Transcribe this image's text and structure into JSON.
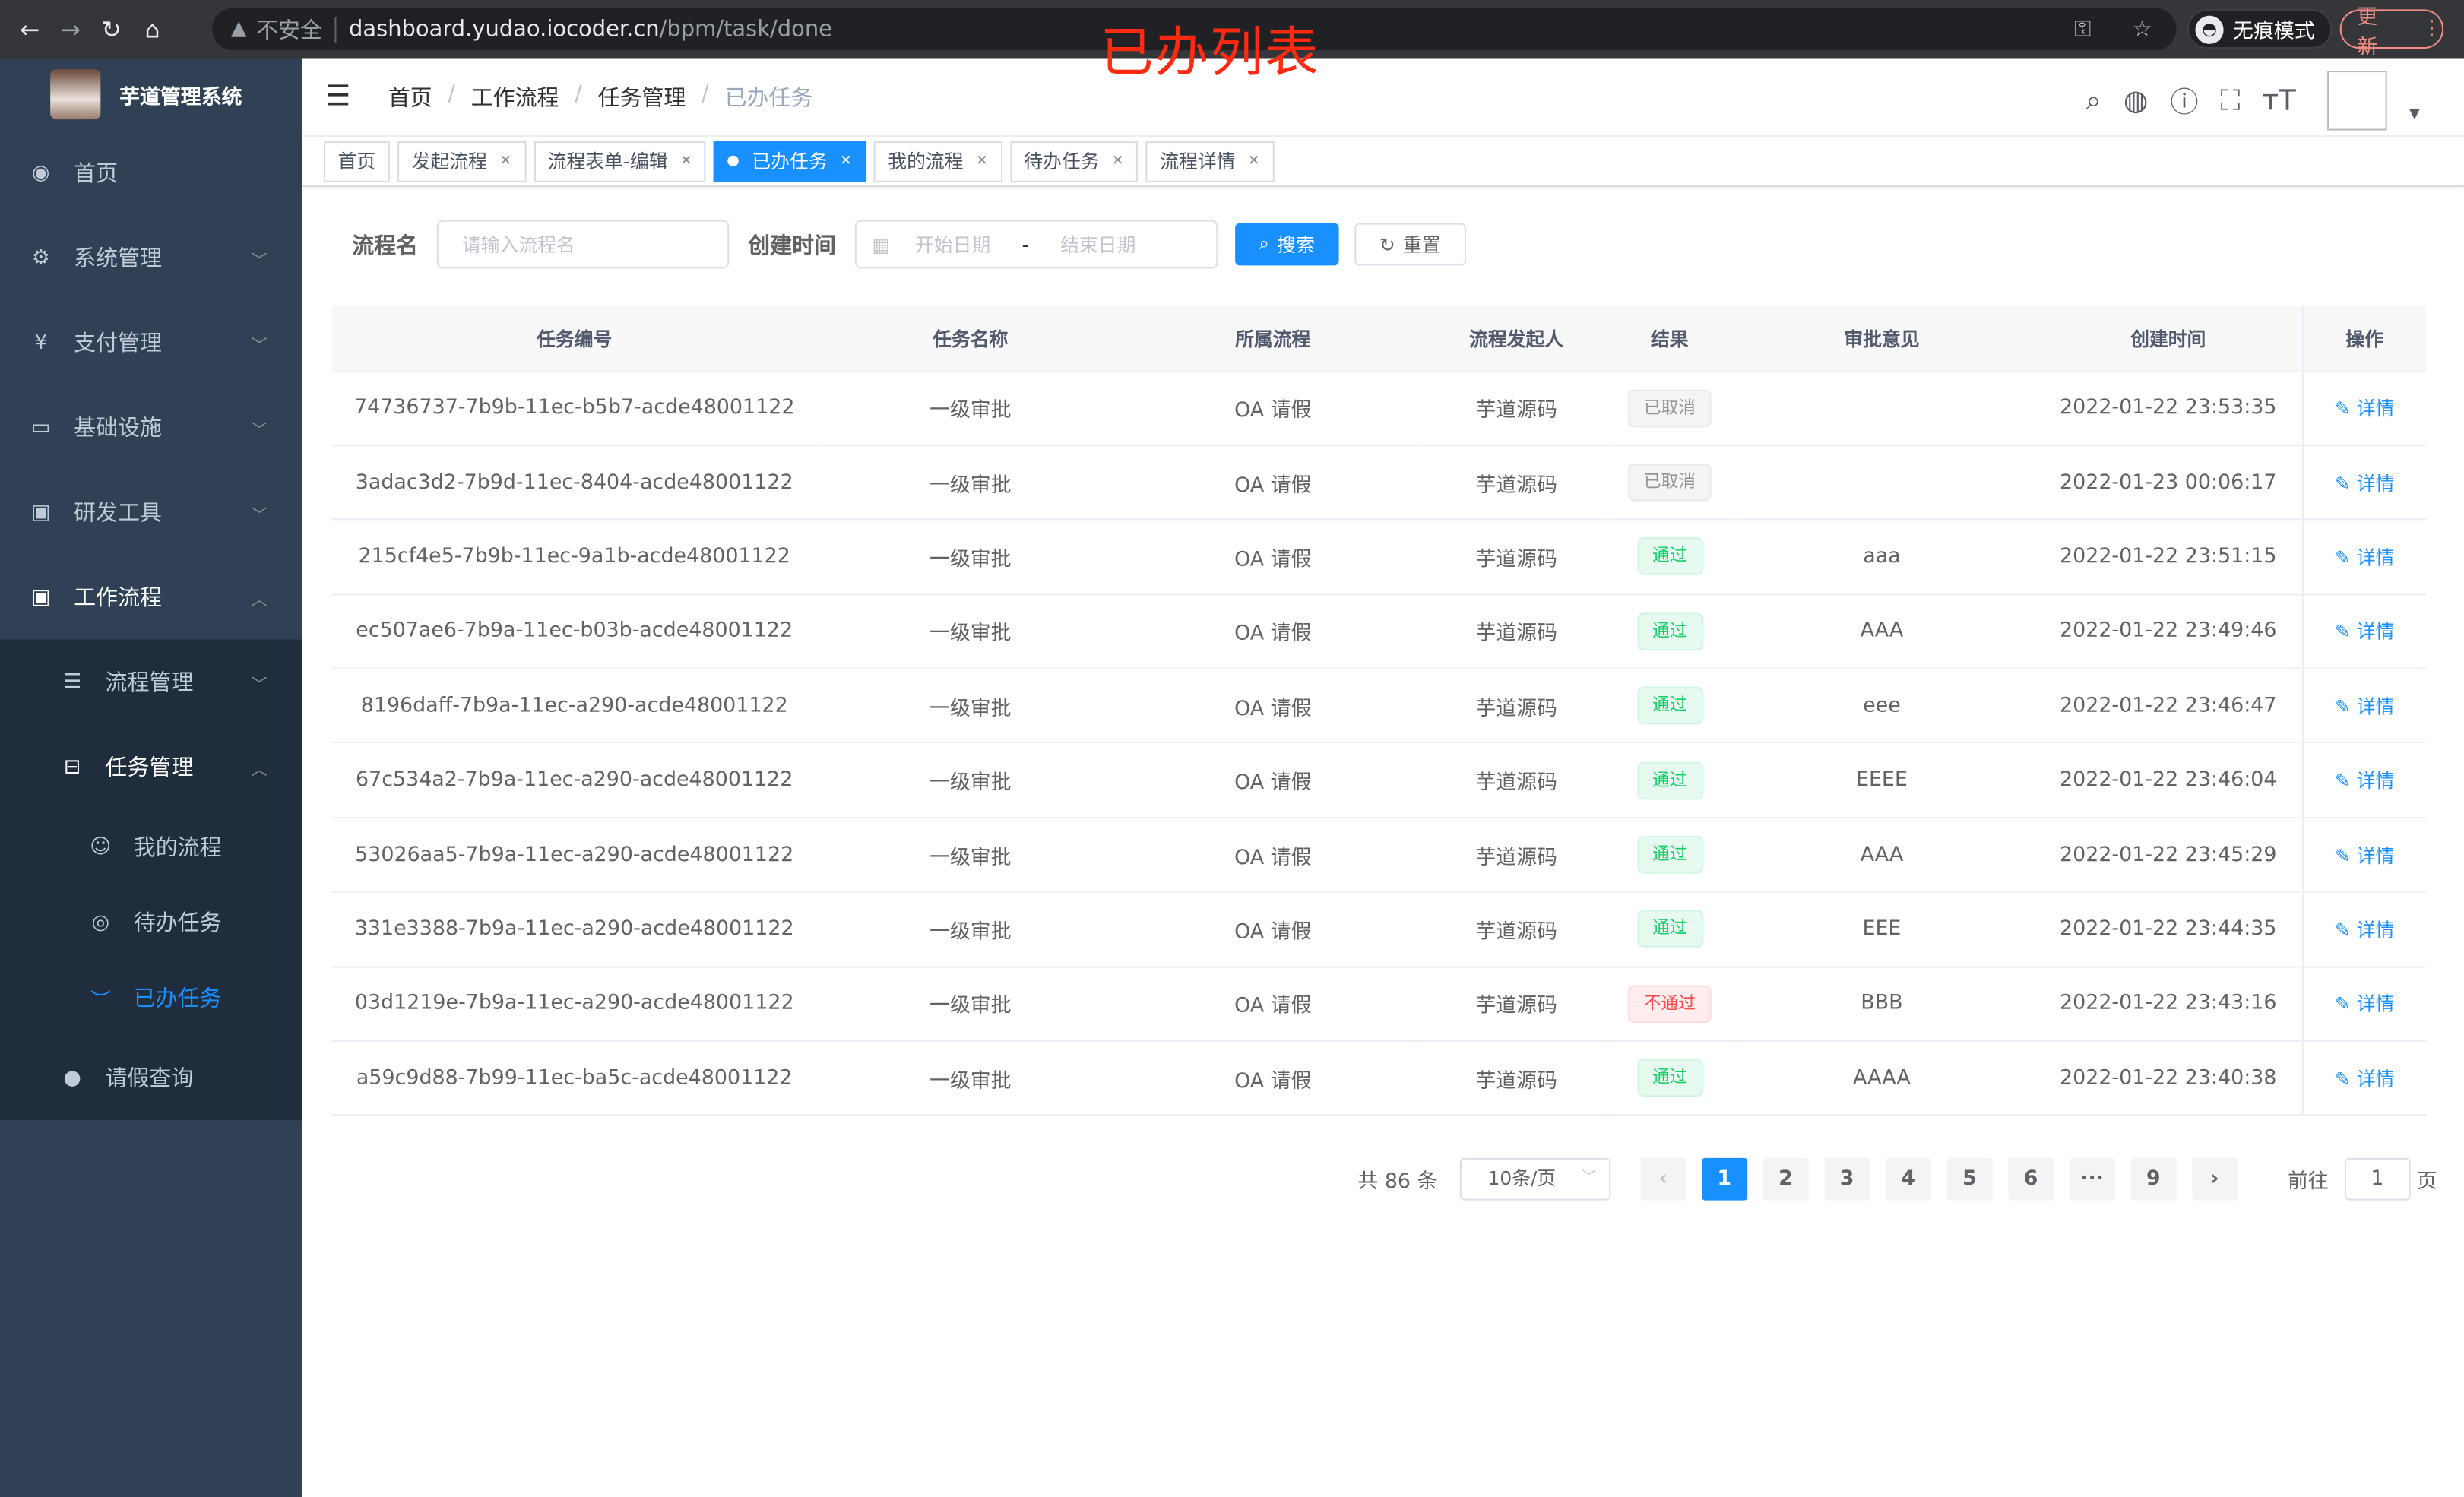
{
  "browser": {
    "security": "不安全",
    "url_host": "dashboard.yudao.iocoder.cn",
    "url_path": "/bpm/task/done",
    "incognito": "无痕模式",
    "update": "更新"
  },
  "annotation": "已办列表",
  "sidebar": {
    "title": "芋道管理系统",
    "items": [
      {
        "label": "首页",
        "icon": "dashboard-icon"
      },
      {
        "label": "系统管理",
        "icon": "gear-icon"
      },
      {
        "label": "支付管理",
        "icon": "yen-icon"
      },
      {
        "label": "基础设施",
        "icon": "monitor-icon"
      },
      {
        "label": "研发工具",
        "icon": "toolbox-icon"
      },
      {
        "label": "工作流程",
        "icon": "toolbox-icon"
      }
    ],
    "workflow_sub": [
      {
        "label": "流程管理"
      },
      {
        "label": "任务管理"
      }
    ],
    "task_sub": [
      {
        "label": "我的流程"
      },
      {
        "label": "待办任务"
      },
      {
        "label": "已办任务"
      }
    ],
    "leave": {
      "label": "请假查询"
    }
  },
  "breadcrumb": [
    "首页",
    "工作流程",
    "任务管理",
    "已办任务"
  ],
  "tags": [
    {
      "label": "首页"
    },
    {
      "label": "发起流程"
    },
    {
      "label": "流程表单-编辑"
    },
    {
      "label": "已办任务"
    },
    {
      "label": "我的流程"
    },
    {
      "label": "待办任务"
    },
    {
      "label": "流程详情"
    }
  ],
  "search": {
    "name_label": "流程名",
    "name_placeholder": "请输入流程名",
    "time_label": "创建时间",
    "start_placeholder": "开始日期",
    "sep": "-",
    "end_placeholder": "结束日期",
    "search_btn": "搜索",
    "reset_btn": "重置"
  },
  "table": {
    "headers": [
      "任务编号",
      "任务名称",
      "所属流程",
      "流程发起人",
      "结果",
      "审批意见",
      "创建时间",
      "操作"
    ],
    "rows": [
      [
        "74736737-7b9b-11ec-b5b7-acde48001122",
        "一级审批",
        "OA 请假",
        "芋道源码",
        "已取消",
        "",
        "2022-01-22 23:53:35",
        "详情"
      ],
      [
        "3adac3d2-7b9d-11ec-8404-acde48001122",
        "一级审批",
        "OA 请假",
        "芋道源码",
        "已取消",
        "",
        "2022-01-23 00:06:17",
        "详情"
      ],
      [
        "215cf4e5-7b9b-11ec-9a1b-acde48001122",
        "一级审批",
        "OA 请假",
        "芋道源码",
        "通过",
        "aaa",
        "2022-01-22 23:51:15",
        "详情"
      ],
      [
        "ec507ae6-7b9a-11ec-b03b-acde48001122",
        "一级审批",
        "OA 请假",
        "芋道源码",
        "通过",
        "AAA",
        "2022-01-22 23:49:46",
        "详情"
      ],
      [
        "8196daff-7b9a-11ec-a290-acde48001122",
        "一级审批",
        "OA 请假",
        "芋道源码",
        "通过",
        "eee",
        "2022-01-22 23:46:47",
        "详情"
      ],
      [
        "67c534a2-7b9a-11ec-a290-acde48001122",
        "一级审批",
        "OA 请假",
        "芋道源码",
        "通过",
        "EEEE",
        "2022-01-22 23:46:04",
        "详情"
      ],
      [
        "53026aa5-7b9a-11ec-a290-acde48001122",
        "一级审批",
        "OA 请假",
        "芋道源码",
        "通过",
        "AAA",
        "2022-01-22 23:45:29",
        "详情"
      ],
      [
        "331e3388-7b9a-11ec-a290-acde48001122",
        "一级审批",
        "OA 请假",
        "芋道源码",
        "通过",
        "EEE",
        "2022-01-22 23:44:35",
        "详情"
      ],
      [
        "03d1219e-7b9a-11ec-a290-acde48001122",
        "一级审批",
        "OA 请假",
        "芋道源码",
        "不通过",
        "BBB",
        "2022-01-22 23:43:16",
        "详情"
      ],
      [
        "a59c9d88-7b99-11ec-ba5c-acde48001122",
        "一级审批",
        "OA 请假",
        "芋道源码",
        "通过",
        "AAAA",
        "2022-01-22 23:40:38",
        "详情"
      ]
    ]
  },
  "pagination": {
    "total": "共 86 条",
    "page_size": "10条/页",
    "pages": [
      "1",
      "2",
      "3",
      "4",
      "5",
      "6",
      "···",
      "9"
    ],
    "current": "1",
    "goto_label": "前往",
    "goto_value": "1",
    "page_suffix": "页"
  },
  "colors": {
    "primary": "#1890ff",
    "sidebar": "#304156",
    "success": "#13ce66",
    "danger": "#ff4949",
    "info": "#909399"
  }
}
